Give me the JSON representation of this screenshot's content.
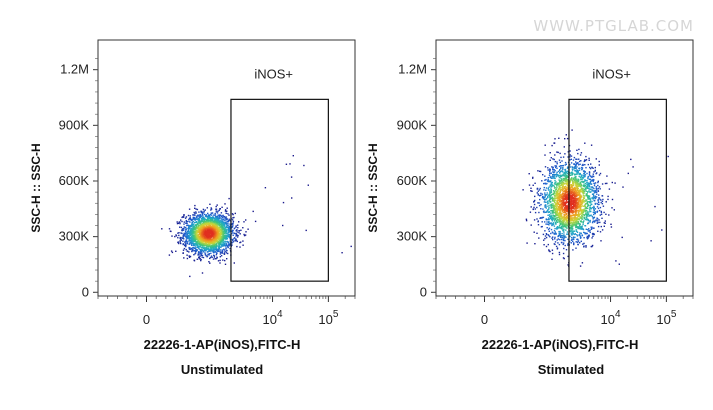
{
  "watermark": "WWW.PTGLAB.COM",
  "chart_data": [
    {
      "type": "scatter",
      "caption": "Unstimulated",
      "xlabel": "22226-1-AP(iNOS),FITC-H",
      "ylabel": "SSC-H :: SSC-H",
      "x_scale": "biexponential",
      "xlim": [
        -300,
        300000
      ],
      "ylim": [
        -20000,
        1360000
      ],
      "x_ticks": [
        {
          "value": 0,
          "base": "0",
          "exp": ""
        },
        {
          "value": 10000,
          "base": "10",
          "exp": "4"
        },
        {
          "value": 100000,
          "base": "10",
          "exp": "5"
        }
      ],
      "y_ticks": [
        {
          "value": 0,
          "label": "0"
        },
        {
          "value": 300000,
          "label": "300K"
        },
        {
          "value": 600000,
          "label": "600K"
        },
        {
          "value": 900000,
          "label": "900K"
        },
        {
          "value": 1200000,
          "label": "1.2M"
        }
      ],
      "gate": {
        "label": "iNOS+",
        "x_min": 1800,
        "x_max": 100000,
        "y_min": 60000,
        "y_max": 1040000
      },
      "population": {
        "center_x": 700,
        "center_y": 320000,
        "spread_x_decades": 0.22,
        "spread_y": 55000,
        "points": 2600
      },
      "colormap": [
        "#1a1a8c",
        "#1f5fd0",
        "#20a9c9",
        "#3cc47a",
        "#c8d83a",
        "#f0a020",
        "#e03020"
      ]
    },
    {
      "type": "scatter",
      "caption": "Stimulated",
      "xlabel": "22226-1-AP(iNOS),FITC-H",
      "ylabel": "SSC-H :: SSC-H",
      "x_scale": "biexponential",
      "xlim": [
        -300,
        300000
      ],
      "ylim": [
        -20000,
        1360000
      ],
      "x_ticks": [
        {
          "value": 0,
          "base": "0",
          "exp": ""
        },
        {
          "value": 10000,
          "base": "10",
          "exp": "4"
        },
        {
          "value": 100000,
          "base": "10",
          "exp": "5"
        }
      ],
      "y_ticks": [
        {
          "value": 0,
          "label": "0"
        },
        {
          "value": 300000,
          "label": "300K"
        },
        {
          "value": 600000,
          "label": "600K"
        },
        {
          "value": 900000,
          "label": "900K"
        },
        {
          "value": 1200000,
          "label": "1.2M"
        }
      ],
      "gate": {
        "label": "iNOS+",
        "x_min": 1800,
        "x_max": 100000,
        "y_min": 60000,
        "y_max": 1040000
      },
      "population": {
        "center_x": 1800,
        "center_y": 490000,
        "spread_x_decades": 0.26,
        "spread_y": 110000,
        "points": 2600
      },
      "colormap": [
        "#1a1a8c",
        "#1f5fd0",
        "#20a9c9",
        "#3cc47a",
        "#c8d83a",
        "#f0a020",
        "#e03020"
      ]
    }
  ]
}
